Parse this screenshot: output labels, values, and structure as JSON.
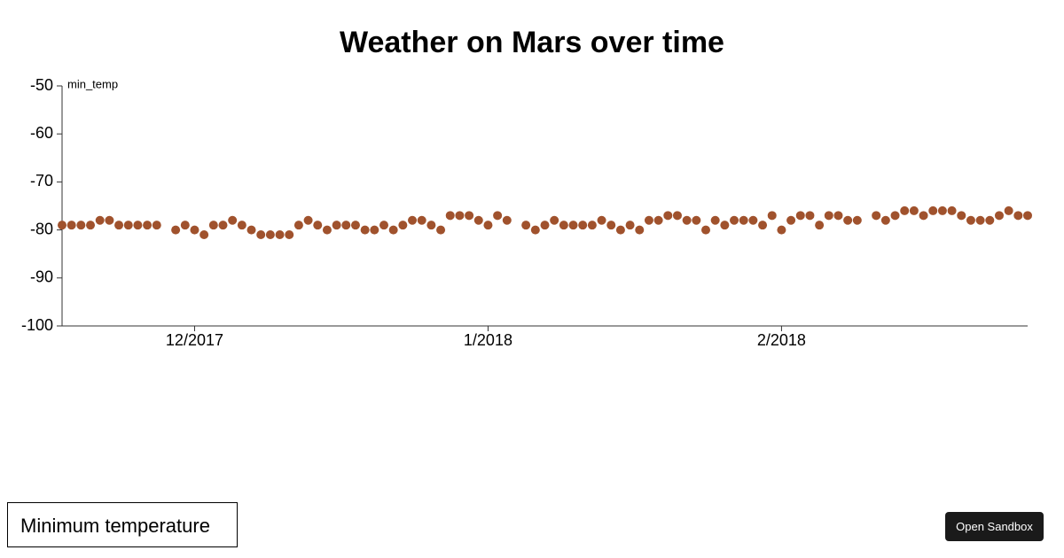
{
  "chart_data": {
    "type": "scatter",
    "title": "Weather on Mars over time",
    "y_label": "min_temp",
    "color": "#a0522d",
    "categories": [
      null,
      null,
      null,
      null,
      null,
      null,
      null,
      null,
      null,
      null,
      null,
      null,
      null,
      null,
      null,
      null,
      null,
      null,
      null,
      null,
      null,
      null,
      null,
      null,
      null,
      null,
      null,
      null,
      null,
      null,
      null,
      null,
      null,
      null,
      null,
      null,
      null,
      null,
      null,
      null,
      null,
      null,
      null,
      null,
      null,
      null,
      null,
      null,
      null,
      null,
      null,
      null,
      null,
      null,
      null,
      null,
      null,
      null,
      null,
      null,
      null,
      null,
      null,
      null,
      null,
      null,
      null,
      null,
      null,
      null,
      null,
      null,
      null,
      null,
      null,
      null,
      null,
      null,
      null,
      null,
      null,
      null,
      null,
      null,
      null,
      null,
      null,
      null,
      null,
      null,
      null,
      null,
      null,
      null,
      null,
      null,
      null,
      null,
      null,
      null,
      null,
      null,
      null
    ],
    "values": [
      -79,
      -79,
      -79,
      -79,
      -78,
      -78,
      -79,
      -79,
      -79,
      -79,
      -79,
      null,
      -80,
      -79,
      -80,
      -81,
      -79,
      -79,
      -78,
      -79,
      -80,
      -81,
      -81,
      -81,
      -81,
      -79,
      -78,
      -79,
      -80,
      -79,
      -79,
      -79,
      -80,
      -80,
      -79,
      -80,
      -79,
      -78,
      -78,
      -79,
      -80,
      -77,
      -77,
      -77,
      -78,
      -79,
      -77,
      -78,
      null,
      -79,
      -80,
      -79,
      -78,
      -79,
      -79,
      -79,
      -79,
      -78,
      -79,
      -80,
      -79,
      -80,
      -78,
      -78,
      -77,
      -77,
      -78,
      -78,
      -80,
      -78,
      -79,
      -78,
      -78,
      -78,
      -79,
      -77,
      -80,
      -78,
      -77,
      -77,
      -79,
      -77,
      -77,
      -78,
      -78,
      null,
      -77,
      -78,
      -77,
      -76,
      -76,
      -77,
      -76,
      -76,
      -76,
      -77,
      -78,
      -78,
      -78,
      -77,
      -76,
      -77,
      -77
    ],
    "xlim": [
      0,
      102
    ],
    "xticks": [
      {
        "value": 14,
        "label": "12/2017"
      },
      {
        "value": 45,
        "label": "1/2018"
      },
      {
        "value": 76,
        "label": "2/2018"
      }
    ],
    "ylim": [
      -100,
      -50
    ],
    "yticks": [
      -100,
      -90,
      -80,
      -70,
      -60,
      -50
    ]
  },
  "controls": {
    "selector": "Minimum temperature",
    "button": "Open Sandbox"
  }
}
